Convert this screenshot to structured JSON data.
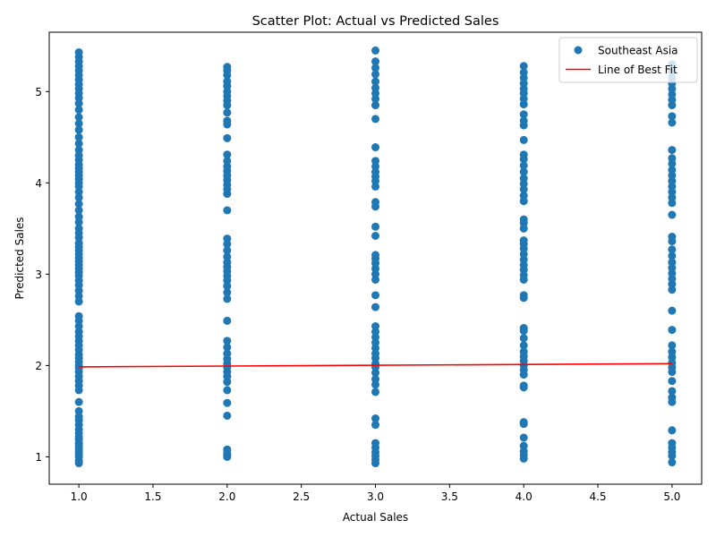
{
  "chart_data": {
    "type": "scatter",
    "title": "Scatter Plot: Actual vs Predicted Sales",
    "xlabel": "Actual Sales",
    "ylabel": "Predicted Sales",
    "xlim": [
      0.8,
      5.2
    ],
    "ylim": [
      0.7,
      5.65
    ],
    "xticks": [
      1.0,
      1.5,
      2.0,
      2.5,
      3.0,
      3.5,
      4.0,
      4.5,
      5.0
    ],
    "xtick_labels": [
      "1.0",
      "1.5",
      "2.0",
      "2.5",
      "3.0",
      "3.5",
      "4.0",
      "4.5",
      "5.0"
    ],
    "yticks": [
      1,
      2,
      3,
      4,
      5
    ],
    "ytick_labels": [
      "1",
      "2",
      "3",
      "4",
      "5"
    ],
    "grid": false,
    "legend_position": "top-right",
    "series": [
      {
        "name": "Southeast Asia",
        "kind": "scatter",
        "color": "#1f77b4",
        "points": [
          {
            "x": 1,
            "y": [
              0.93,
              0.96,
              1.0,
              1.03,
              1.06,
              1.09,
              1.12,
              1.15,
              1.19,
              1.22,
              1.26,
              1.3,
              1.35,
              1.4,
              1.44,
              1.5,
              1.6,
              1.73,
              1.78,
              1.83,
              1.88,
              1.93,
              1.97,
              2.0,
              2.04,
              2.08,
              2.12,
              2.17,
              2.22,
              2.27,
              2.32,
              2.37,
              2.43,
              2.49,
              2.54,
              2.7,
              2.76,
              2.82,
              2.88,
              2.93,
              2.98,
              3.02,
              3.06,
              3.1,
              3.14,
              3.18,
              3.22,
              3.26,
              3.3,
              3.34,
              3.4,
              3.45,
              3.5,
              3.57,
              3.63,
              3.7,
              3.77,
              3.84,
              3.9,
              3.96,
              4.0,
              4.04,
              4.08,
              4.12,
              4.16,
              4.2,
              4.25,
              4.3,
              4.36,
              4.43,
              4.5,
              4.58,
              4.65,
              4.72,
              4.8,
              4.87,
              4.93,
              4.98,
              5.03,
              5.08,
              5.13,
              5.18,
              5.23,
              5.28,
              5.33,
              5.38,
              5.43
            ]
          },
          {
            "x": 2,
            "y": [
              1.0,
              1.02,
              1.04,
              1.08,
              1.45,
              1.59,
              1.73,
              1.82,
              1.88,
              1.93,
              1.98,
              2.02,
              2.07,
              2.13,
              2.2,
              2.27,
              2.49,
              2.73,
              2.8,
              2.87,
              2.93,
              2.98,
              3.03,
              3.08,
              3.13,
              3.19,
              3.26,
              3.33,
              3.39,
              3.7,
              3.88,
              3.93,
              3.98,
              4.03,
              4.08,
              4.13,
              4.18,
              4.24,
              4.31,
              4.49,
              4.64,
              4.68,
              4.77,
              4.85,
              4.9,
              4.95,
              5.0,
              5.06,
              5.11,
              5.18,
              5.23,
              5.27
            ]
          },
          {
            "x": 3,
            "y": [
              0.93,
              0.97,
              1.01,
              1.05,
              1.1,
              1.15,
              1.35,
              1.42,
              1.71,
              1.79,
              1.85,
              1.92,
              1.98,
              2.02,
              2.08,
              2.13,
              2.19,
              2.25,
              2.31,
              2.37,
              2.43,
              2.64,
              2.77,
              2.94,
              3.0,
              3.06,
              3.12,
              3.17,
              3.21,
              3.42,
              3.52,
              3.74,
              3.79,
              3.96,
              4.02,
              4.07,
              4.12,
              4.18,
              4.24,
              4.39,
              4.7,
              4.85,
              4.92,
              4.98,
              5.04,
              5.11,
              5.19,
              5.26,
              5.33,
              5.45
            ]
          },
          {
            "x": 4,
            "y": [
              0.98,
              1.02,
              1.06,
              1.12,
              1.21,
              1.36,
              1.38,
              1.76,
              1.78,
              1.9,
              1.95,
              2.0,
              2.05,
              2.1,
              2.15,
              2.22,
              2.3,
              2.38,
              2.41,
              2.74,
              2.77,
              2.94,
              2.99,
              3.05,
              3.1,
              3.16,
              3.22,
              3.28,
              3.33,
              3.37,
              3.5,
              3.56,
              3.6,
              3.8,
              3.86,
              3.93,
              3.99,
              4.05,
              4.12,
              4.19,
              4.26,
              4.31,
              4.47,
              4.63,
              4.68,
              4.75,
              4.86,
              4.92,
              4.98,
              5.03,
              5.09,
              5.15,
              5.21,
              5.28
            ]
          },
          {
            "x": 5,
            "y": [
              0.94,
              1.01,
              1.05,
              1.1,
              1.15,
              1.29,
              1.6,
              1.65,
              1.72,
              1.83,
              1.93,
              1.98,
              2.03,
              2.09,
              2.15,
              2.22,
              2.39,
              2.6,
              2.83,
              2.89,
              2.95,
              3.01,
              3.07,
              3.13,
              3.2,
              3.27,
              3.36,
              3.41,
              3.65,
              3.78,
              3.84,
              3.9,
              3.96,
              4.02,
              4.08,
              4.14,
              4.21,
              4.27,
              4.36,
              4.66,
              4.73,
              4.85,
              4.91,
              4.97,
              5.03,
              5.09,
              5.15,
              5.22,
              5.3
            ]
          }
        ]
      },
      {
        "name": "Line of Best Fit",
        "kind": "line",
        "color": "#ff0000",
        "x": [
          1,
          5
        ],
        "y": [
          1.985,
          2.02
        ]
      }
    ]
  }
}
